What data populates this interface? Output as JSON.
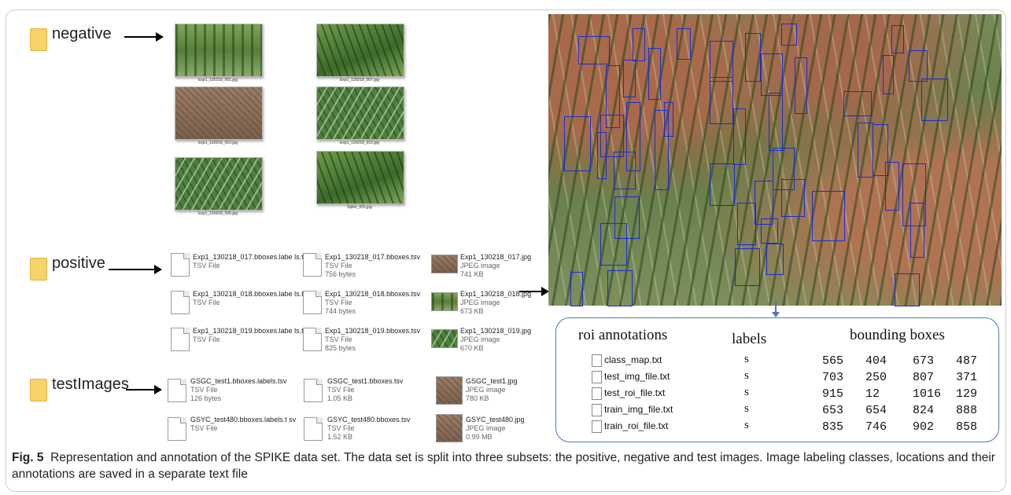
{
  "folders": {
    "negative": "negative",
    "positive": "positive",
    "testimages": "testImages"
  },
  "negative_images": [
    {
      "caption": "Exp1_130218_001.jpg"
    },
    {
      "caption": "Exp1_130218_007.jpg"
    },
    {
      "caption": "Exp1_130218_010.jpg"
    },
    {
      "caption": "Exp1_130218_012.jpg"
    },
    {
      "caption": "Exp1_130218_026.jpg"
    },
    {
      "caption": "Spike_001.jpg"
    }
  ],
  "positive_files": [
    {
      "labels_name": "Exp1_130218_017.bboxes.labe ls.tsv",
      "labels_type": "TSV File",
      "bbox_name": "Exp1_130218_017.bboxes.tsv",
      "bbox_type": "TSV File",
      "bbox_size": "756 bytes",
      "img_name": "Exp1_130218_017.jpg",
      "img_type": "JPEG image",
      "img_size": "741 KB"
    },
    {
      "labels_name": "Exp1_130218_018.bboxes.labe ls.tsv",
      "labels_type": "TSV File",
      "bbox_name": "Exp1_130218_018.bboxes.tsv",
      "bbox_type": "TSV File",
      "bbox_size": "744 bytes",
      "img_name": "Exp1_130218_018.jpg",
      "img_type": "JPEG image",
      "img_size": "673 KB"
    },
    {
      "labels_name": "Exp1_130218_019.bboxes.labe ls.tsv",
      "labels_type": "TSV File",
      "bbox_name": "Exp1_130218_019.bboxes.tsv",
      "bbox_type": "TSV File",
      "bbox_size": "825 bytes",
      "img_name": "Exp1_130218_019.jpg",
      "img_type": "JPEG image",
      "img_size": "670 KB"
    }
  ],
  "test_files": [
    {
      "labels_name": "GSGC_test1.bboxes.labels.tsv",
      "labels_type": "TSV File",
      "labels_size": "126 bytes",
      "bbox_name": "GSGC_test1.bboxes.tsv",
      "bbox_type": "TSV File",
      "bbox_size": "1.05 KB",
      "img_name": "GSGC_test1.jpg",
      "img_type": "JPEG image",
      "img_size": "780 KB"
    },
    {
      "labels_name": "GSYC_test480.bboxes.labels.t sv",
      "labels_type": "TSV File",
      "labels_size": "",
      "bbox_name": "GSYC_test480.bboxes.tsv",
      "bbox_type": "TSV File",
      "bbox_size": "1.52 KB",
      "img_name": "GSYC_test480.jpg",
      "img_type": "JPEG image",
      "img_size": "0.99 MB"
    }
  ],
  "annotations": {
    "col_roi": "roi annotations",
    "col_labels": "labels",
    "col_bbox": "bounding boxes",
    "rows": [
      {
        "file": "class_map.txt",
        "label": "s",
        "v1": "565",
        "v2": "404",
        "v3": "673",
        "v4": "487"
      },
      {
        "file": "test_img_file.txt",
        "label": "s",
        "v1": "703",
        "v2": "250",
        "v3": "807",
        "v4": "371"
      },
      {
        "file": "test_roi_file.txt",
        "label": "s",
        "v1": "915",
        "v2": "12",
        "v3": "1016",
        "v4": "129"
      },
      {
        "file": "train_img_file.txt",
        "label": "s",
        "v1": "653",
        "v2": "654",
        "v3": "824",
        "v4": "888"
      },
      {
        "file": "train_roi_file.txt",
        "label": "s",
        "v1": "835",
        "v2": "746",
        "v3": "902",
        "v4": "858"
      }
    ]
  },
  "caption": {
    "label": "Fig. 5",
    "text": "Representation and annotation of the SPIKE data set. The data set is split into three subsets: the positive, negative and test images. Image labeling classes, locations and their annotations are saved in a separate text file"
  }
}
